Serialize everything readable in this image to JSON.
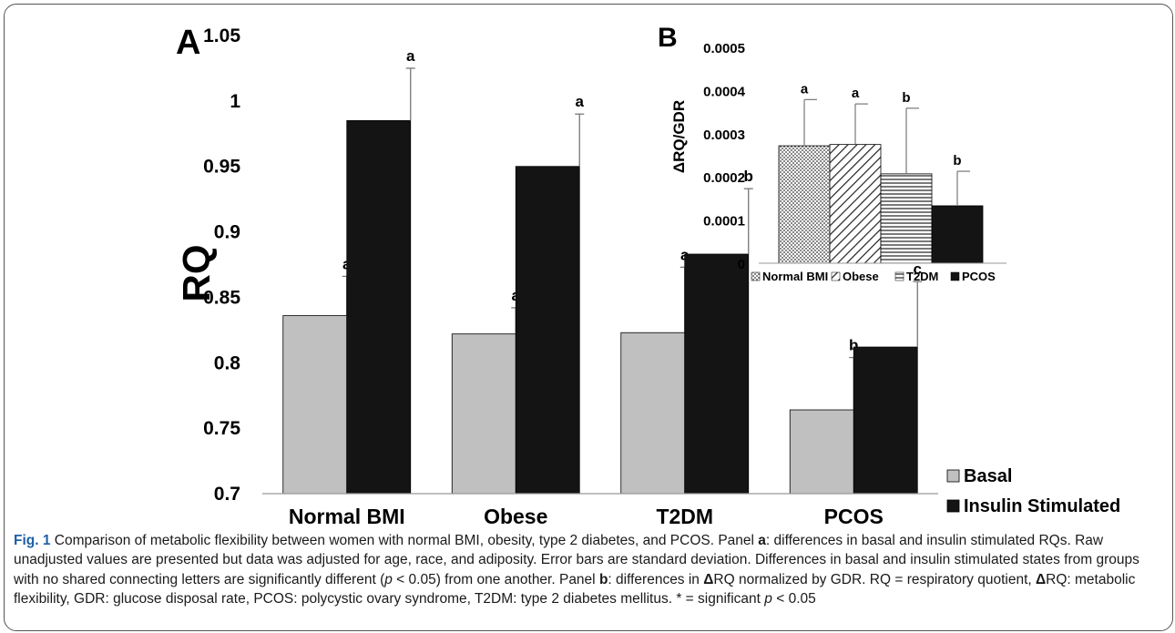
{
  "chart_data": [
    {
      "panel_label": "A",
      "type": "bar",
      "categories": [
        "Normal BMI",
        "Obese",
        "T2DM",
        "PCOS"
      ],
      "series": [
        {
          "name": "Basal",
          "values": [
            0.836,
            0.822,
            0.823,
            0.764
          ],
          "errors": [
            0.03,
            0.02,
            0.05,
            0.04
          ],
          "letters": [
            "a",
            "a",
            "a",
            "b"
          ]
        },
        {
          "name": "Insulin Stimulated",
          "values": [
            0.985,
            0.95,
            0.883,
            0.812
          ],
          "errors": [
            0.04,
            0.04,
            0.05,
            0.05
          ],
          "letters": [
            "a",
            "a",
            "b",
            "c"
          ]
        }
      ],
      "ylabel": "RQ",
      "ylim": [
        0.7,
        1.05
      ],
      "yticks": [
        "0.7",
        "0.75",
        "0.8",
        "0.85",
        "0.9",
        "0.95",
        "1",
        "1.05"
      ],
      "grid": false,
      "legend_position": "bottom-right",
      "colors": {
        "Basal": "#c0c0c0",
        "Insulin Stimulated": "#141414"
      }
    },
    {
      "panel_label": "B",
      "type": "bar",
      "categories": [
        "Normal BMI",
        "Obese",
        "T2DM",
        "PCOS"
      ],
      "values": [
        0.000272,
        0.000275,
        0.000207,
        0.000133
      ],
      "errors": [
        0.000107,
        9.4e-05,
        0.000152,
        8e-05
      ],
      "letters": [
        "a",
        "a",
        "b",
        "b"
      ],
      "ylabel": "ΔRQ/GDR",
      "ylim": [
        0,
        0.0005
      ],
      "yticks": [
        "0",
        "0.0001",
        "0.0002",
        "0.0003",
        "0.0004",
        "0.0005"
      ],
      "patterns": [
        "dots",
        "diagonal",
        "horizontal",
        "solid"
      ],
      "legend_position": "bottom",
      "grid": false
    }
  ],
  "caption": {
    "fig_label": "Fig. 1",
    "text_1": " Comparison of metabolic flexibility between women with normal BMI, obesity, type 2 diabetes, and PCOS. Panel ",
    "panel_a": "a",
    "text_2": ": differences in basal and insulin stimulated RQs. Raw unadjusted values are presented but data was adjusted for age, race, and adiposity. Error bars are standard deviation. Differences in basal and insulin stimulated states from groups with no shared connecting letters are significantly different (",
    "p_symbol": "p",
    "text_3": " < 0.05) from one another. Panel ",
    "panel_b": "b",
    "text_4": ": differences in ",
    "delta_symbol": "Δ",
    "text_5": "RQ normalized by GDR. RQ = respiratory quotient, ",
    "text_6": "RQ: metabolic flexibility, GDR: glucose disposal rate, PCOS: polycystic ovary syndrome, T2DM: type 2 diabetes mellitus. * = significant ",
    "text_7": " < 0.05"
  }
}
